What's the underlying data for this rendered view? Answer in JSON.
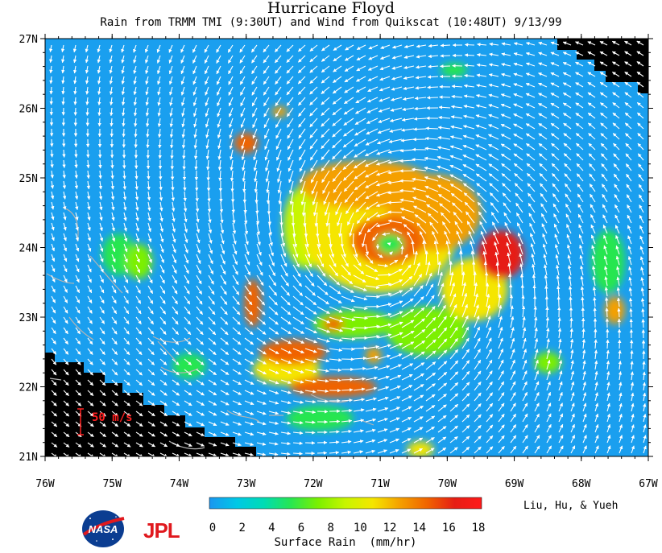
{
  "title": "Hurricane Floyd",
  "subtitle": "Rain from TRMM TMI (9:30UT) and Wind from Quikscat (10:48UT) 9/13/99",
  "credits": "Liu, Hu, & Yueh",
  "logos": {
    "nasa": "NASA",
    "jpl": "JPL"
  },
  "map": {
    "lon_range": [
      -76,
      -67
    ],
    "lat_range": [
      21,
      27
    ],
    "lon_ticks": [
      "76W",
      "75W",
      "74W",
      "73W",
      "72W",
      "71W",
      "70W",
      "69W",
      "68W",
      "67W"
    ],
    "lat_ticks": [
      "21N",
      "22N",
      "23N",
      "24N",
      "25N",
      "26N",
      "27N"
    ],
    "wind_scale_label": "50 m/s",
    "background_color": "#1a9fef",
    "land_color": "#000000",
    "arrow_color": "#ffffff",
    "wind_center": {
      "lon": -70.9,
      "lat": 24.0
    },
    "rain_features": [
      {
        "lon": -71.0,
        "lat": 24.2,
        "rx": 1.15,
        "ry": 0.85,
        "level": 10
      },
      {
        "lon": -70.9,
        "lat": 24.1,
        "rx": 0.55,
        "ry": 0.35,
        "level": 15
      },
      {
        "lon": -71.2,
        "lat": 24.9,
        "rx": 1.0,
        "ry": 0.35,
        "level": 13
      },
      {
        "lon": -70.2,
        "lat": 24.5,
        "rx": 0.7,
        "ry": 0.55,
        "level": 12
      },
      {
        "lon": -69.2,
        "lat": 23.9,
        "rx": 0.35,
        "ry": 0.35,
        "level": 16
      },
      {
        "lon": -69.6,
        "lat": 23.4,
        "rx": 0.5,
        "ry": 0.45,
        "level": 10
      },
      {
        "lon": -72.1,
        "lat": 24.3,
        "rx": 0.35,
        "ry": 0.6,
        "level": 9
      },
      {
        "lon": -72.3,
        "lat": 22.5,
        "rx": 0.5,
        "ry": 0.18,
        "level": 14
      },
      {
        "lon": -71.7,
        "lat": 22.0,
        "rx": 0.65,
        "ry": 0.15,
        "level": 15
      },
      {
        "lon": -72.4,
        "lat": 22.25,
        "rx": 0.5,
        "ry": 0.22,
        "level": 11
      },
      {
        "lon": -72.9,
        "lat": 23.2,
        "rx": 0.13,
        "ry": 0.35,
        "level": 14
      },
      {
        "lon": -71.4,
        "lat": 22.9,
        "rx": 0.6,
        "ry": 0.2,
        "level": 8
      },
      {
        "lon": -70.3,
        "lat": 22.8,
        "rx": 0.6,
        "ry": 0.35,
        "level": 7
      },
      {
        "lon": -73.0,
        "lat": 25.5,
        "rx": 0.18,
        "ry": 0.15,
        "level": 14
      },
      {
        "lon": -72.5,
        "lat": 25.95,
        "rx": 0.12,
        "ry": 0.08,
        "level": 12
      },
      {
        "lon": -74.9,
        "lat": 23.9,
        "rx": 0.25,
        "ry": 0.3,
        "level": 6
      },
      {
        "lon": -74.6,
        "lat": 23.8,
        "rx": 0.2,
        "ry": 0.25,
        "level": 8
      },
      {
        "lon": -73.85,
        "lat": 22.3,
        "rx": 0.25,
        "ry": 0.18,
        "level": 6
      },
      {
        "lon": -71.9,
        "lat": 21.55,
        "rx": 0.5,
        "ry": 0.18,
        "level": 6
      },
      {
        "lon": -70.4,
        "lat": 21.1,
        "rx": 0.2,
        "ry": 0.12,
        "level": 11
      },
      {
        "lon": -67.5,
        "lat": 23.1,
        "rx": 0.15,
        "ry": 0.2,
        "level": 12
      },
      {
        "lon": -67.6,
        "lat": 23.8,
        "rx": 0.25,
        "ry": 0.45,
        "level": 6
      },
      {
        "lon": -68.5,
        "lat": 22.35,
        "rx": 0.2,
        "ry": 0.15,
        "level": 7
      },
      {
        "lon": -71.7,
        "lat": 22.9,
        "rx": 0.15,
        "ry": 0.1,
        "level": 14
      },
      {
        "lon": -71.1,
        "lat": 22.45,
        "rx": 0.12,
        "ry": 0.12,
        "level": 13
      },
      {
        "lon": -69.9,
        "lat": 26.55,
        "rx": 0.2,
        "ry": 0.1,
        "level": 5
      }
    ]
  },
  "colorbar": {
    "label": "Surface Rain  (mm/hr)",
    "min": 0,
    "max": 18,
    "ticks": [
      "0",
      "2",
      "4",
      "6",
      "8",
      "10",
      "12",
      "14",
      "16",
      "18"
    ],
    "colors": [
      "#1a96f0",
      "#00c8e6",
      "#00dcb4",
      "#28e650",
      "#7cf000",
      "#c8f500",
      "#f5e600",
      "#f5a000",
      "#f06400",
      "#e61e14",
      "#ff1a1a"
    ]
  }
}
